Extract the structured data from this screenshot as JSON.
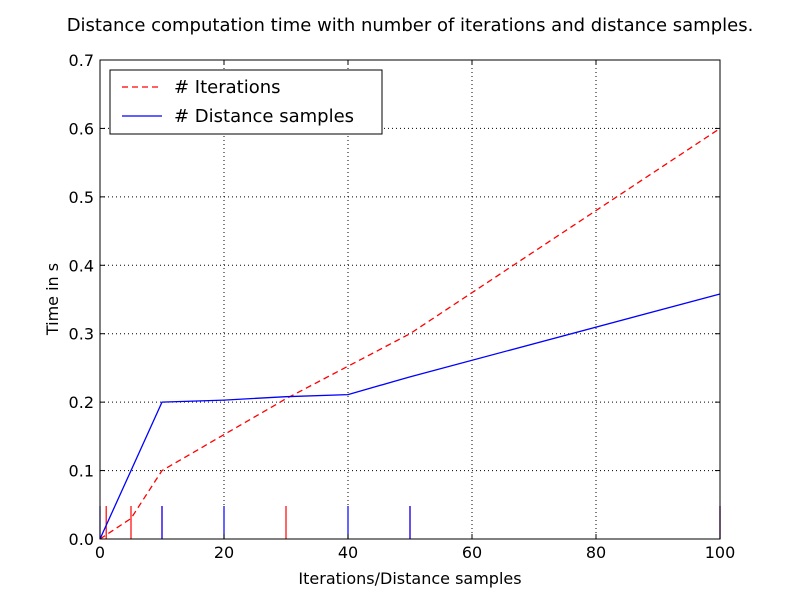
{
  "chart_data": {
    "type": "line",
    "title": "Distance computation time with number of iterations and distance samples.",
    "xlabel": "Iterations/Distance samples",
    "ylabel": "Time in s",
    "xlim": [
      0,
      100
    ],
    "ylim": [
      0,
      0.7
    ],
    "xticks": [
      "0",
      "20",
      "40",
      "60",
      "80",
      "100"
    ],
    "yticks": [
      "0.0",
      "0.1",
      "0.2",
      "0.3",
      "0.4",
      "0.5",
      "0.6",
      "0.7"
    ],
    "grid": true,
    "legend_position": "top-left",
    "series": [
      {
        "name": "# Iterations",
        "style": "dashed",
        "color": "#ff0000",
        "x": [
          0,
          1,
          5,
          10,
          30,
          50,
          100
        ],
        "y": [
          0.0,
          0.006,
          0.03,
          0.1,
          0.205,
          0.3,
          0.6
        ],
        "rug": [
          1,
          5,
          10,
          30,
          50,
          100
        ]
      },
      {
        "name": "# Distance samples",
        "style": "solid",
        "color": "#0000ff",
        "x": [
          0,
          10,
          20,
          30,
          40,
          50,
          100
        ],
        "y": [
          0.0,
          0.2,
          0.203,
          0.208,
          0.211,
          0.237,
          0.358
        ],
        "rug": [
          0,
          10,
          20,
          40,
          50,
          100
        ]
      }
    ]
  }
}
